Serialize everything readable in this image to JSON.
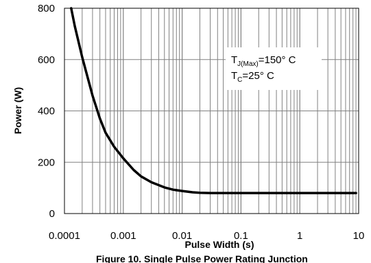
{
  "chart_data": {
    "type": "line",
    "title": "",
    "xlabel": "Pulse Width (s)",
    "ylabel": "Power (W)",
    "x_scale": "log",
    "xlim": [
      0.0001,
      10
    ],
    "ylim": [
      0,
      800
    ],
    "x_tick_labels": [
      "0.0001",
      "0.001",
      "0.01",
      "0.1",
      "1",
      "10"
    ],
    "x_tick_values": [
      0.0001,
      0.001,
      0.01,
      0.1,
      1,
      10
    ],
    "y_tick_labels": [
      "0",
      "200",
      "400",
      "600",
      "800"
    ],
    "y_tick_values": [
      0,
      200,
      400,
      600,
      800
    ],
    "grid": true,
    "line_color": "#000000",
    "grid_color": "#808080",
    "series": [
      {
        "x": [
          0.00013,
          0.00015,
          0.0002,
          0.0003,
          0.0004,
          0.0005,
          0.0007,
          0.001,
          0.0015,
          0.002,
          0.003,
          0.005,
          0.007,
          0.01,
          0.015,
          0.02,
          0.03,
          0.05,
          0.1,
          0.3,
          1,
          3,
          9
        ],
        "y": [
          800,
          730,
          610,
          460,
          370,
          315,
          260,
          215,
          170,
          145,
          122,
          102,
          93,
          88,
          83,
          81,
          80,
          80,
          80,
          80,
          80,
          80,
          80
        ]
      }
    ],
    "annotations": {
      "line1_main": "T",
      "line1_sub": "J(Max)",
      "line1_rest": "=150° C",
      "line2_main": "T",
      "line2_sub": "C",
      "line2_rest": "=25° C"
    },
    "caption_partial": "Figure 10. Single Pulse Power Rating Junction"
  }
}
